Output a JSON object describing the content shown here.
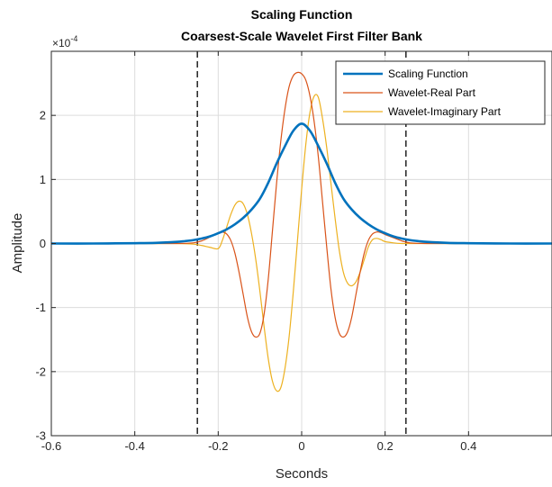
{
  "chart_data": {
    "type": "line",
    "title": "Scaling Function",
    "subtitle": "Coarsest-Scale Wavelet First Filter Bank",
    "xlabel": "Seconds",
    "ylabel": "Amplitude",
    "y_exponent_base": "×10",
    "y_exponent_power": "-4",
    "xlim": [
      -0.6,
      0.6
    ],
    "ylim": [
      -3,
      3
    ],
    "x_ticks": [
      -0.6,
      -0.4,
      -0.2,
      0,
      0.2,
      0.4
    ],
    "x_tick_labels": [
      "-0.6",
      "-0.4",
      "-0.2",
      "0",
      "0.2",
      "0.4"
    ],
    "y_ticks": [
      -3,
      -2,
      -1,
      0,
      1,
      2
    ],
    "y_tick_labels": [
      "-3",
      "-2",
      "-1",
      "0",
      "1",
      "2"
    ],
    "grid": true,
    "legend_position": "top-right",
    "vertical_lines": [
      -0.25,
      0.25
    ],
    "series": [
      {
        "name": "Scaling Function",
        "color": "#0072BD",
        "line_width": "thick",
        "x": [
          -0.6,
          -0.5,
          -0.4,
          -0.35,
          -0.3,
          -0.28,
          -0.26,
          -0.24,
          -0.22,
          -0.2,
          -0.18,
          -0.16,
          -0.14,
          -0.12,
          -0.1,
          -0.08,
          -0.06,
          -0.04,
          -0.02,
          0,
          0.02,
          0.04,
          0.06,
          0.08,
          0.1,
          0.12,
          0.14,
          0.16,
          0.18,
          0.2,
          0.22,
          0.24,
          0.26,
          0.28,
          0.3,
          0.35,
          0.4,
          0.5,
          0.6
        ],
        "y": [
          0,
          0,
          0.005,
          0.01,
          0.025,
          0.037,
          0.053,
          0.077,
          0.11,
          0.16,
          0.22,
          0.3,
          0.4,
          0.53,
          0.7,
          0.95,
          1.25,
          1.52,
          1.76,
          1.87,
          1.76,
          1.52,
          1.25,
          0.95,
          0.7,
          0.53,
          0.4,
          0.3,
          0.22,
          0.16,
          0.11,
          0.077,
          0.053,
          0.037,
          0.025,
          0.01,
          0.005,
          0,
          0
        ]
      },
      {
        "name": "Wavelet-Real Part",
        "color": "#D95319",
        "line_width": "thin",
        "x": [
          -0.6,
          -0.4,
          -0.3,
          -0.26,
          -0.24,
          -0.22,
          -0.2,
          -0.19,
          -0.18,
          -0.17,
          -0.16,
          -0.15,
          -0.14,
          -0.13,
          -0.12,
          -0.11,
          -0.1,
          -0.09,
          -0.08,
          -0.07,
          -0.06,
          -0.05,
          -0.04,
          -0.03,
          -0.02,
          -0.01,
          0,
          0.01,
          0.02,
          0.03,
          0.04,
          0.05,
          0.06,
          0.07,
          0.08,
          0.09,
          0.1,
          0.11,
          0.12,
          0.13,
          0.14,
          0.15,
          0.16,
          0.17,
          0.18,
          0.19,
          0.2,
          0.22,
          0.24,
          0.26,
          0.3,
          0.4,
          0.6
        ],
        "y": [
          0,
          0,
          0,
          0.01,
          0.04,
          0.1,
          0.17,
          0.18,
          0.15,
          0.05,
          -0.15,
          -0.45,
          -0.8,
          -1.15,
          -1.38,
          -1.46,
          -1.4,
          -1.1,
          -0.55,
          0.2,
          0.95,
          1.6,
          2.1,
          2.45,
          2.62,
          2.67,
          2.65,
          2.55,
          2.3,
          1.9,
          1.35,
          0.65,
          -0.05,
          -0.7,
          -1.15,
          -1.4,
          -1.46,
          -1.38,
          -1.15,
          -0.8,
          -0.45,
          -0.15,
          0.05,
          0.15,
          0.18,
          0.17,
          0.14,
          0.09,
          0.04,
          0.01,
          0,
          0,
          0
        ]
      },
      {
        "name": "Wavelet-Imaginary Part",
        "color": "#EDB120",
        "line_width": "thin",
        "x": [
          -0.6,
          -0.4,
          -0.3,
          -0.26,
          -0.24,
          -0.22,
          -0.2,
          -0.19,
          -0.18,
          -0.17,
          -0.16,
          -0.15,
          -0.14,
          -0.13,
          -0.12,
          -0.11,
          -0.1,
          -0.09,
          -0.08,
          -0.07,
          -0.06,
          -0.05,
          -0.04,
          -0.03,
          -0.02,
          -0.01,
          0,
          0.01,
          0.02,
          0.03,
          0.04,
          0.05,
          0.06,
          0.07,
          0.08,
          0.09,
          0.1,
          0.11,
          0.12,
          0.13,
          0.14,
          0.15,
          0.16,
          0.17,
          0.18,
          0.19,
          0.2,
          0.22,
          0.24,
          0.26,
          0.3,
          0.4,
          0.6
        ],
        "y": [
          0,
          0,
          0,
          -0.01,
          -0.03,
          -0.06,
          -0.08,
          0.05,
          0.25,
          0.45,
          0.6,
          0.66,
          0.62,
          0.45,
          0.15,
          -0.25,
          -0.75,
          -1.3,
          -1.8,
          -2.15,
          -2.3,
          -2.25,
          -1.95,
          -1.45,
          -0.75,
          0.05,
          0.85,
          1.55,
          2.05,
          2.3,
          2.28,
          1.95,
          1.5,
          0.95,
          0.4,
          -0.1,
          -0.45,
          -0.62,
          -0.66,
          -0.6,
          -0.45,
          -0.25,
          -0.05,
          0.06,
          0.08,
          0.06,
          0.03,
          0.01,
          0,
          0,
          0,
          0,
          0
        ]
      }
    ]
  }
}
